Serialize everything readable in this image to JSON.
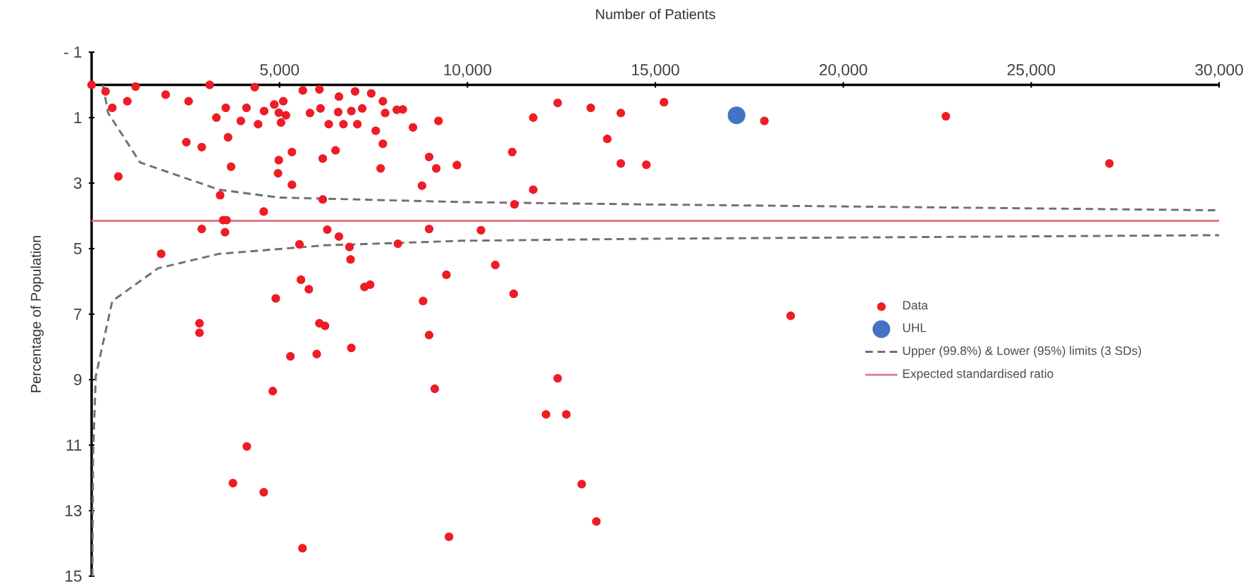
{
  "chart_data": {
    "type": "scatter",
    "xlabel": "Number of Patients",
    "ylabel": "Percentage of Population",
    "xlim": [
      0,
      30000
    ],
    "ylim": [
      15,
      -1
    ],
    "xticks": [
      {
        "value": 0,
        "label": null
      },
      {
        "value": 5000,
        "label": "5,000"
      },
      {
        "value": 10000,
        "label": "10,000"
      },
      {
        "value": 15000,
        "label": "15,000"
      },
      {
        "value": 20000,
        "label": "20,000"
      },
      {
        "value": 25000,
        "label": "25,000"
      },
      {
        "value": 30000,
        "label": "30,000"
      }
    ],
    "yticks": [
      {
        "value": -1,
        "label": "- 1"
      },
      1,
      3,
      5,
      7,
      9,
      11,
      13,
      15
    ],
    "legend": "right",
    "grid": false,
    "series": [
      {
        "name": "Data",
        "marker": "circle",
        "color": "#ee1c25",
        "x": [
          0,
          370,
          550,
          950,
          1170,
          710,
          1970,
          2580,
          2520,
          2930,
          3140,
          3320,
          3570,
          3630,
          3710,
          3970,
          4120,
          4340,
          4430,
          4590,
          4860,
          4980,
          5040,
          5170,
          5100,
          5620,
          4980,
          5330,
          4960,
          5330,
          5810,
          6060,
          6090,
          6310,
          6150,
          6580,
          6560,
          6700,
          6490,
          7010,
          6910,
          7070,
          7200,
          7440,
          7560,
          7750,
          7750,
          7810,
          8120,
          8280,
          8550,
          9230,
          7690,
          8980,
          9170,
          9720,
          8790,
          11750,
          11190,
          11750,
          11250,
          12400,
          13280,
          13720,
          14080,
          14080,
          3420,
          6150,
          4580,
          3500,
          3590,
          3550,
          2930,
          1850,
          6270,
          6580,
          5530,
          6860,
          6890,
          8150,
          8980,
          10360,
          10740,
          9440,
          5570,
          5780,
          7260,
          7410,
          11230,
          4900,
          8820,
          2870,
          2870,
          6060,
          6210,
          5290,
          5990,
          6910,
          8980,
          4820,
          9130,
          12400,
          12090,
          12630,
          4130,
          3760,
          4580,
          13040,
          13430,
          9510,
          5610,
          15230,
          17900,
          22730,
          14760,
          27080,
          18600
        ],
        "values": [
          0,
          0.2,
          0.7,
          0.5,
          0.05,
          2.8,
          0.3,
          0.5,
          1.75,
          1.9,
          0,
          1.0,
          0.7,
          1.6,
          2.5,
          1.1,
          0.7,
          0.07,
          1.2,
          0.8,
          0.6,
          0.85,
          1.15,
          0.93,
          0.5,
          0.17,
          2.3,
          2.05,
          2.7,
          3.05,
          0.86,
          0.14,
          0.72,
          1.2,
          2.25,
          0.36,
          0.83,
          1.2,
          2.0,
          0.2,
          0.8,
          1.2,
          0.72,
          0.26,
          1.4,
          0.5,
          1.8,
          0.86,
          0.76,
          0.75,
          1.3,
          1.1,
          2.55,
          2.2,
          2.55,
          2.45,
          3.08,
          1.0,
          2.05,
          3.2,
          3.65,
          0.55,
          0.7,
          1.65,
          0.86,
          2.4,
          3.37,
          3.5,
          3.87,
          4.13,
          4.13,
          4.5,
          4.4,
          5.16,
          4.42,
          4.63,
          4.87,
          4.95,
          5.33,
          4.85,
          4.4,
          4.44,
          5.5,
          5.8,
          5.95,
          6.24,
          6.17,
          6.1,
          6.38,
          6.52,
          6.6,
          7.28,
          7.57,
          7.28,
          7.36,
          8.29,
          8.22,
          8.03,
          7.64,
          9.35,
          9.28,
          8.96,
          10.06,
          10.06,
          11.04,
          12.16,
          12.44,
          12.19,
          13.33,
          13.8,
          14.15,
          0.53,
          1.1,
          0.96,
          2.44,
          2.4,
          7.05
        ]
      },
      {
        "name": "UHL",
        "marker": "circle",
        "color": "#4472c4",
        "x": [
          17160
        ],
        "values": [
          0.93
        ]
      },
      {
        "name": "Upper (99.8%) & Lower (95%) limits (3 SDs)",
        "type": "line",
        "marker": "none",
        "line_style": "dashed",
        "color": "#707070",
        "x": [
          300,
          440,
          1290,
          3390,
          4980,
          9890,
          14700,
          30000,
          null,
          20,
          40,
          110,
          550,
          1770,
          3390,
          6200,
          9890,
          14700,
          30000
        ],
        "values": [
          0,
          0.86,
          2.37,
          3.2,
          3.44,
          3.58,
          3.65,
          3.83,
          null,
          15,
          11.3,
          8.9,
          6.6,
          5.6,
          5.16,
          4.9,
          4.76,
          4.7,
          4.59
        ]
      },
      {
        "name": "Expected standardised ratio",
        "type": "line",
        "marker": "none",
        "line_style": "solid",
        "color": "#e07b8a",
        "x": [
          0,
          30000
        ],
        "values": [
          4.15,
          4.15
        ]
      }
    ]
  }
}
